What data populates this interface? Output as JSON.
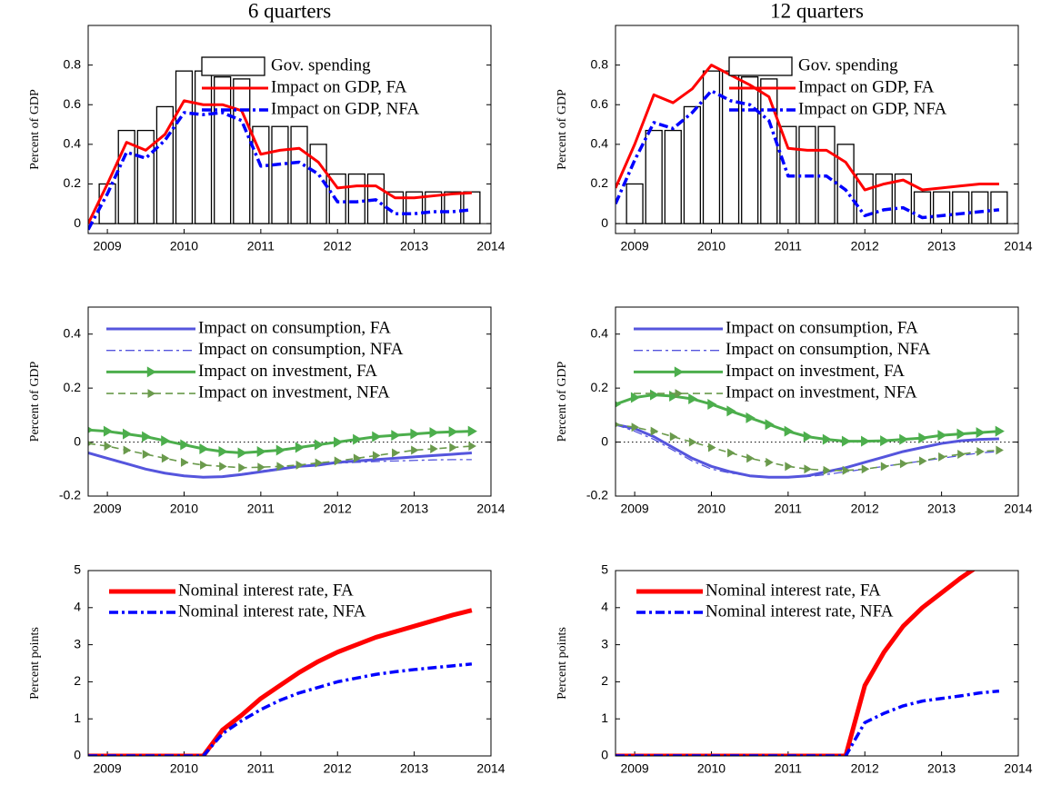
{
  "chart_data": [
    {
      "type": "bar-line",
      "title": "6 quarters",
      "ylabel": "Percent of GDP",
      "x": [
        2008.75,
        2009,
        2009.25,
        2009.5,
        2009.75,
        2010,
        2010.25,
        2010.5,
        2010.75,
        2011,
        2011.25,
        2011.5,
        2011.75,
        2012,
        2012.25,
        2012.5,
        2012.75,
        2013,
        2013.25,
        2013.5,
        2013.75
      ],
      "xlim": [
        2008.75,
        2014
      ],
      "xticks": [
        2009,
        2010,
        2011,
        2012,
        2013,
        2014
      ],
      "ylim": [
        -0.05,
        1.0
      ],
      "yticks": [
        0,
        0.2,
        0.4,
        0.6,
        0.8
      ],
      "zero_line": "solid",
      "legend": "upper right",
      "series": [
        {
          "name": "Gov. spending",
          "kind": "bar",
          "color": "#000000",
          "values": [
            0,
            0.2,
            0.47,
            0.47,
            0.59,
            0.77,
            0.77,
            0.74,
            0.73,
            0.49,
            0.49,
            0.49,
            0.4,
            0.25,
            0.25,
            0.25,
            0.16,
            0.16,
            0.16,
            0.16,
            0.16
          ]
        },
        {
          "name": "Impact on GDP, FA",
          "kind": "line",
          "color": "#ff0000",
          "dash": "solid",
          "values": [
            0,
            0.2,
            0.41,
            0.37,
            0.45,
            0.62,
            0.6,
            0.6,
            0.57,
            0.35,
            0.37,
            0.38,
            0.31,
            0.18,
            0.19,
            0.19,
            0.13,
            0.13,
            0.14,
            0.15,
            0.155
          ]
        },
        {
          "name": "Impact on GDP, NFA",
          "kind": "line",
          "color": "#0000ff",
          "dash": "dash-dot",
          "values": [
            -0.03,
            0.15,
            0.36,
            0.33,
            0.42,
            0.56,
            0.55,
            0.56,
            0.52,
            0.29,
            0.3,
            0.31,
            0.25,
            0.11,
            0.11,
            0.12,
            0.05,
            0.05,
            0.06,
            0.06,
            0.07
          ]
        }
      ]
    },
    {
      "type": "bar-line",
      "title": "12 quarters",
      "ylabel": "Percent of GDP",
      "x": [
        2008.75,
        2009,
        2009.25,
        2009.5,
        2009.75,
        2010,
        2010.25,
        2010.5,
        2010.75,
        2011,
        2011.25,
        2011.5,
        2011.75,
        2012,
        2012.25,
        2012.5,
        2012.75,
        2013,
        2013.25,
        2013.5,
        2013.75
      ],
      "xlim": [
        2008.75,
        2014
      ],
      "xticks": [
        2009,
        2010,
        2011,
        2012,
        2013,
        2014
      ],
      "ylim": [
        -0.05,
        1.0
      ],
      "yticks": [
        0,
        0.2,
        0.4,
        0.6,
        0.8
      ],
      "zero_line": "solid",
      "legend": "upper right",
      "series": [
        {
          "name": "Gov. spending",
          "kind": "bar",
          "color": "#000000",
          "values": [
            0,
            0.2,
            0.47,
            0.47,
            0.59,
            0.77,
            0.77,
            0.74,
            0.73,
            0.49,
            0.49,
            0.49,
            0.4,
            0.25,
            0.25,
            0.25,
            0.16,
            0.16,
            0.16,
            0.16,
            0.16
          ]
        },
        {
          "name": "Impact on GDP, FA",
          "kind": "line",
          "color": "#ff0000",
          "dash": "solid",
          "values": [
            0.18,
            0.4,
            0.65,
            0.61,
            0.68,
            0.8,
            0.75,
            0.7,
            0.64,
            0.38,
            0.37,
            0.37,
            0.31,
            0.17,
            0.2,
            0.22,
            0.17,
            0.18,
            0.19,
            0.2,
            0.2
          ]
        },
        {
          "name": "Impact on GDP, NFA",
          "kind": "line",
          "color": "#0000ff",
          "dash": "dash-dot",
          "values": [
            0.1,
            0.32,
            0.51,
            0.48,
            0.56,
            0.67,
            0.62,
            0.6,
            0.52,
            0.24,
            0.24,
            0.24,
            0.17,
            0.04,
            0.07,
            0.08,
            0.03,
            0.04,
            0.05,
            0.06,
            0.07
          ]
        }
      ]
    },
    {
      "type": "line",
      "ylabel": "Percent of GDP",
      "x": [
        2008.75,
        2009,
        2009.25,
        2009.5,
        2009.75,
        2010,
        2010.25,
        2010.5,
        2010.75,
        2011,
        2011.25,
        2011.5,
        2011.75,
        2012,
        2012.25,
        2012.5,
        2012.75,
        2013,
        2013.25,
        2013.5,
        2013.75
      ],
      "xlim": [
        2008.75,
        2014
      ],
      "xticks": [
        2009,
        2010,
        2011,
        2012,
        2013,
        2014
      ],
      "ylim": [
        -0.2,
        0.5
      ],
      "yticks": [
        -0.2,
        0,
        0.2,
        0.4
      ],
      "zero_line": "dotted",
      "legend": "upper center",
      "series": [
        {
          "name": "Impact on consumption, FA",
          "kind": "line",
          "color": "#5555dd",
          "dash": "solid",
          "values": [
            -0.04,
            -0.06,
            -0.08,
            -0.1,
            -0.115,
            -0.125,
            -0.13,
            -0.128,
            -0.12,
            -0.11,
            -0.1,
            -0.09,
            -0.085,
            -0.075,
            -0.07,
            -0.065,
            -0.06,
            -0.055,
            -0.05,
            -0.045,
            -0.04
          ]
        },
        {
          "name": "Impact on consumption, NFA",
          "kind": "line",
          "color": "#5555dd",
          "dash": "dash-dot-thin",
          "values": [
            -0.04,
            -0.06,
            -0.08,
            -0.1,
            -0.115,
            -0.125,
            -0.13,
            -0.127,
            -0.118,
            -0.107,
            -0.097,
            -0.088,
            -0.082,
            -0.078,
            -0.075,
            -0.072,
            -0.07,
            -0.068,
            -0.066,
            -0.065,
            -0.065
          ]
        },
        {
          "name": "Impact on investment, FA",
          "kind": "line",
          "color": "#4cae4c",
          "dash": "solid",
          "marker": "triangle",
          "values": [
            0.045,
            0.04,
            0.03,
            0.02,
            0.005,
            -0.01,
            -0.025,
            -0.035,
            -0.04,
            -0.035,
            -0.03,
            -0.02,
            -0.01,
            0,
            0.01,
            0.02,
            0.025,
            0.03,
            0.035,
            0.038,
            0.04
          ]
        },
        {
          "name": "Impact on investment, NFA",
          "kind": "line",
          "color": "#6a9a4c",
          "dash": "dashed",
          "marker": "triangle",
          "values": [
            -0.005,
            -0.015,
            -0.03,
            -0.045,
            -0.06,
            -0.075,
            -0.085,
            -0.09,
            -0.095,
            -0.093,
            -0.09,
            -0.085,
            -0.077,
            -0.07,
            -0.06,
            -0.05,
            -0.04,
            -0.03,
            -0.025,
            -0.02,
            -0.015
          ]
        }
      ]
    },
    {
      "type": "line",
      "ylabel": "Percent of GDP",
      "x": [
        2008.75,
        2009,
        2009.25,
        2009.5,
        2009.75,
        2010,
        2010.25,
        2010.5,
        2010.75,
        2011,
        2011.25,
        2011.5,
        2011.75,
        2012,
        2012.25,
        2012.5,
        2012.75,
        2013,
        2013.25,
        2013.5,
        2013.75
      ],
      "xlim": [
        2008.75,
        2014
      ],
      "xticks": [
        2009,
        2010,
        2011,
        2012,
        2013,
        2014
      ],
      "ylim": [
        -0.2,
        0.5
      ],
      "yticks": [
        -0.2,
        0,
        0.2,
        0.4
      ],
      "zero_line": "dotted",
      "legend": "upper center",
      "series": [
        {
          "name": "Impact on consumption, FA",
          "kind": "line",
          "color": "#5555dd",
          "dash": "solid",
          "values": [
            0.065,
            0.05,
            0.02,
            -0.02,
            -0.06,
            -0.09,
            -0.11,
            -0.125,
            -0.13,
            -0.13,
            -0.125,
            -0.11,
            -0.095,
            -0.075,
            -0.055,
            -0.035,
            -0.02,
            -0.005,
            0.005,
            0.01,
            0.012
          ]
        },
        {
          "name": "Impact on consumption, NFA",
          "kind": "line",
          "color": "#5555dd",
          "dash": "dash-dot-thin",
          "values": [
            0.065,
            0.04,
            0.01,
            -0.03,
            -0.07,
            -0.1,
            -0.115,
            -0.125,
            -0.13,
            -0.13,
            -0.128,
            -0.12,
            -0.11,
            -0.1,
            -0.09,
            -0.08,
            -0.07,
            -0.06,
            -0.05,
            -0.04,
            -0.035
          ]
        },
        {
          "name": "Impact on investment, FA",
          "kind": "line",
          "color": "#4cae4c",
          "dash": "solid",
          "marker": "triangle",
          "values": [
            0.14,
            0.165,
            0.175,
            0.17,
            0.16,
            0.14,
            0.115,
            0.09,
            0.065,
            0.04,
            0.02,
            0.01,
            0.003,
            0.003,
            0.005,
            0.01,
            0.015,
            0.025,
            0.03,
            0.035,
            0.04
          ]
        },
        {
          "name": "Impact on investment, NFA",
          "kind": "line",
          "color": "#6a9a4c",
          "dash": "dashed",
          "marker": "triangle",
          "values": [
            0.065,
            0.055,
            0.04,
            0.02,
            0,
            -0.02,
            -0.04,
            -0.06,
            -0.075,
            -0.09,
            -0.1,
            -0.105,
            -0.105,
            -0.1,
            -0.09,
            -0.08,
            -0.07,
            -0.055,
            -0.045,
            -0.035,
            -0.03
          ]
        }
      ]
    },
    {
      "type": "line",
      "ylabel": "Percent points",
      "x": [
        2008.75,
        2009,
        2009.25,
        2009.5,
        2009.75,
        2010,
        2010.25,
        2010.5,
        2010.75,
        2011,
        2011.25,
        2011.5,
        2011.75,
        2012,
        2012.25,
        2012.5,
        2012.75,
        2013,
        2013.25,
        2013.5,
        2013.75
      ],
      "xlim": [
        2008.75,
        2014
      ],
      "xticks": [
        2009,
        2010,
        2011,
        2012,
        2013,
        2014
      ],
      "ylim": [
        0,
        5
      ],
      "yticks": [
        0,
        1,
        2,
        3,
        4,
        5
      ],
      "legend": "upper left",
      "series": [
        {
          "name": "Nominal interest rate, FA",
          "kind": "line",
          "color": "#ff0000",
          "dash": "solid-thick",
          "values": [
            0,
            0,
            0,
            0,
            0,
            0,
            0,
            0.7,
            1.1,
            1.55,
            1.9,
            2.25,
            2.55,
            2.8,
            3.0,
            3.2,
            3.35,
            3.5,
            3.65,
            3.8,
            3.93
          ]
        },
        {
          "name": "Nominal interest rate, NFA",
          "kind": "line",
          "color": "#0000ff",
          "dash": "dash-dot",
          "values": [
            0,
            0,
            0,
            0,
            0,
            0,
            0,
            0.6,
            0.95,
            1.25,
            1.5,
            1.7,
            1.85,
            2.0,
            2.1,
            2.2,
            2.27,
            2.33,
            2.38,
            2.43,
            2.48
          ]
        }
      ]
    },
    {
      "type": "line",
      "ylabel": "Percent points",
      "x": [
        2008.75,
        2009,
        2009.25,
        2009.5,
        2009.75,
        2010,
        2010.25,
        2010.5,
        2010.75,
        2011,
        2011.25,
        2011.5,
        2011.75,
        2012,
        2012.25,
        2012.5,
        2012.75,
        2013,
        2013.25,
        2013.5,
        2013.75
      ],
      "xlim": [
        2008.75,
        2014
      ],
      "xticks": [
        2009,
        2010,
        2011,
        2012,
        2013,
        2014
      ],
      "ylim": [
        0,
        5
      ],
      "yticks": [
        0,
        1,
        2,
        3,
        4,
        5
      ],
      "legend": "upper left",
      "series": [
        {
          "name": "Nominal interest rate, FA",
          "kind": "line",
          "color": "#ff0000",
          "dash": "solid-thick",
          "values": [
            0,
            0,
            0,
            0,
            0,
            0,
            0,
            0,
            0,
            0,
            0,
            0,
            0,
            1.9,
            2.8,
            3.5,
            4.0,
            4.4,
            4.8,
            5.15,
            5.45
          ]
        },
        {
          "name": "Nominal interest rate, NFA",
          "kind": "line",
          "color": "#0000ff",
          "dash": "dash-dot",
          "values": [
            0,
            0,
            0,
            0,
            0,
            0,
            0,
            0,
            0,
            0,
            0,
            0,
            0,
            0.9,
            1.15,
            1.35,
            1.48,
            1.55,
            1.62,
            1.7,
            1.75
          ]
        }
      ]
    }
  ]
}
